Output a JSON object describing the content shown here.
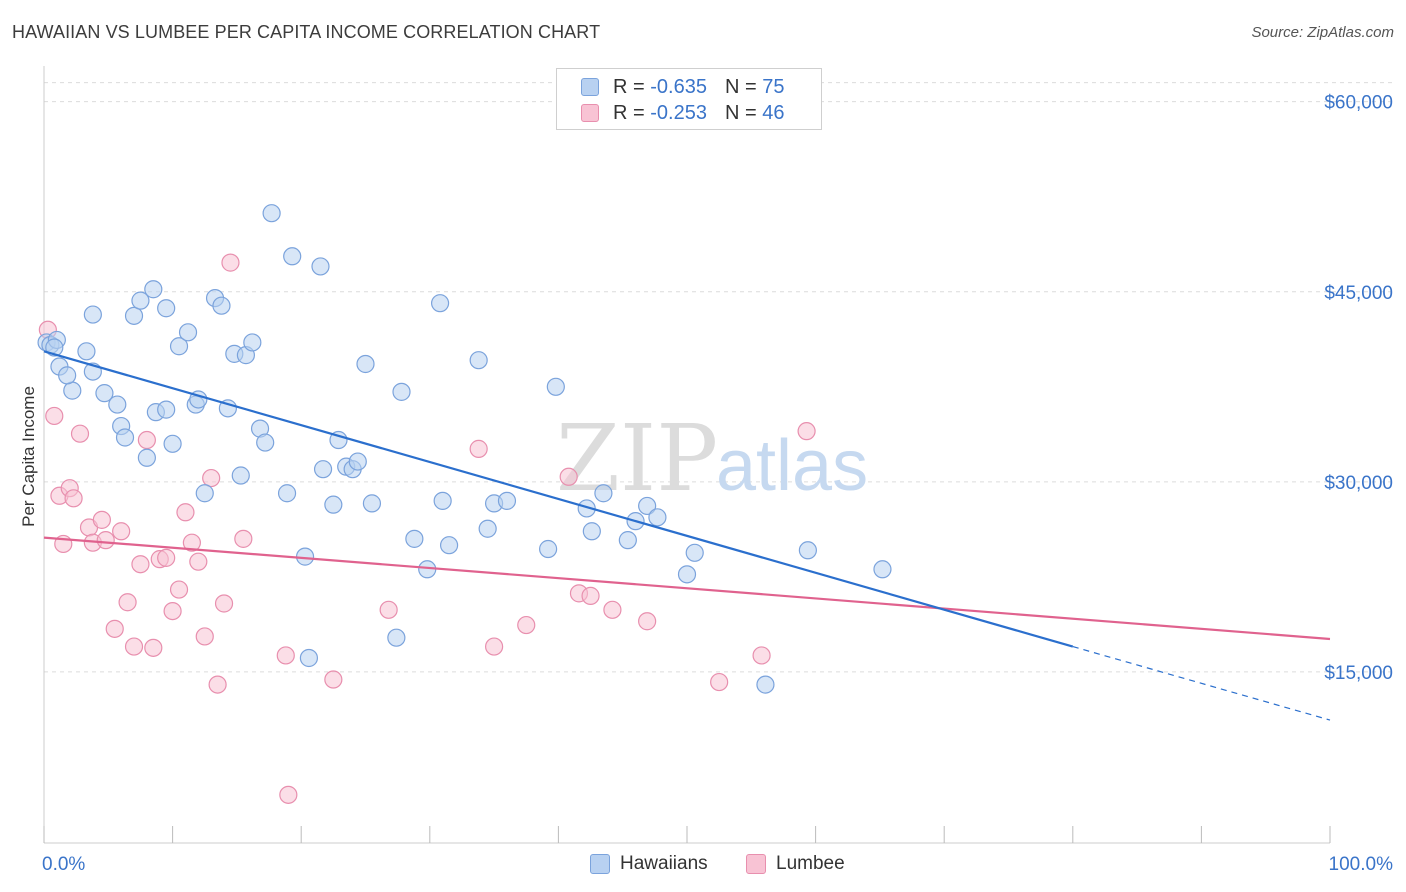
{
  "title": "HAWAIIAN VS LUMBEE PER CAPITA INCOME CORRELATION CHART",
  "source": "Source: ZipAtlas.com",
  "watermark": {
    "zip": "ZIP",
    "atlas": "atlas"
  },
  "legend_stats": [
    {
      "r_label": "R =",
      "r_value": "-0.635",
      "n_label": "N =",
      "n_value": "75"
    },
    {
      "r_label": "R =",
      "r_value": "-0.253",
      "n_label": "N =",
      "n_value": "46"
    }
  ],
  "colors": {
    "hawaiians_fill": "#b8d1f1",
    "hawaiians_stroke": "#7ba3dc",
    "hawaiians_line": "#2b6fcd",
    "lumbee_fill": "#f8c3d4",
    "lumbee_stroke": "#e88fae",
    "lumbee_line": "#e0628e",
    "axis_label": "#3a74c9",
    "grid": "#dcdcdc"
  },
  "chart_data": {
    "type": "scatter",
    "xlabel": "",
    "ylabel": "Per Capita Income",
    "xlim": [
      0,
      100
    ],
    "ylim": [
      1500,
      62500
    ],
    "x_tick_labels": [
      {
        "value": 0,
        "label": "0.0%"
      },
      {
        "value": 100,
        "label": "100.0%"
      }
    ],
    "y_ticks": [
      {
        "value": 15000,
        "label": "$15,000"
      },
      {
        "value": 30000,
        "label": "$30,000"
      },
      {
        "value": 45000,
        "label": "$45,000"
      },
      {
        "value": 60000,
        "label": "$60,000"
      }
    ],
    "grid": "horizontal-dashed",
    "legend_position": "bottom-center",
    "series": [
      {
        "name": "Hawaiians",
        "trend": {
          "x0": 0,
          "y0": 40300,
          "x1": 80,
          "y1": 17000,
          "dash_to_x": 100,
          "dash_to_y": 11200
        },
        "points": [
          [
            0.2,
            41000
          ],
          [
            1.2,
            39100
          ],
          [
            2.2,
            37200
          ],
          [
            1.8,
            38400
          ],
          [
            3.8,
            43200
          ],
          [
            3.3,
            40300
          ],
          [
            3.8,
            38700
          ],
          [
            4.7,
            37000
          ],
          [
            6.0,
            34400
          ],
          [
            5.7,
            36100
          ],
          [
            6.3,
            33500
          ],
          [
            7.0,
            43100
          ],
          [
            7.5,
            44300
          ],
          [
            8.0,
            31900
          ],
          [
            8.7,
            35500
          ],
          [
            8.5,
            45200
          ],
          [
            9.5,
            43700
          ],
          [
            9.5,
            35700
          ],
          [
            10.0,
            33000
          ],
          [
            10.5,
            40700
          ],
          [
            11.2,
            41800
          ],
          [
            11.8,
            36100
          ],
          [
            12.0,
            36500
          ],
          [
            12.5,
            29100
          ],
          [
            13.3,
            44500
          ],
          [
            13.8,
            43900
          ],
          [
            14.3,
            35800
          ],
          [
            14.8,
            40100
          ],
          [
            15.3,
            30500
          ],
          [
            15.7,
            40000
          ],
          [
            16.2,
            41000
          ],
          [
            16.8,
            34200
          ],
          [
            17.2,
            33100
          ],
          [
            17.7,
            51200
          ],
          [
            18.9,
            29100
          ],
          [
            19.3,
            47800
          ],
          [
            20.3,
            24100
          ],
          [
            20.6,
            16100
          ],
          [
            21.5,
            47000
          ],
          [
            21.7,
            31000
          ],
          [
            22.5,
            28200
          ],
          [
            22.9,
            33300
          ],
          [
            23.5,
            31200
          ],
          [
            24.0,
            31000
          ],
          [
            24.4,
            31600
          ],
          [
            25.0,
            39300
          ],
          [
            25.5,
            28300
          ],
          [
            27.4,
            17700
          ],
          [
            27.8,
            37100
          ],
          [
            28.8,
            25500
          ],
          [
            29.8,
            23100
          ],
          [
            30.8,
            44100
          ],
          [
            31.0,
            28500
          ],
          [
            31.5,
            25000
          ],
          [
            33.8,
            39600
          ],
          [
            34.5,
            26300
          ],
          [
            35.0,
            28300
          ],
          [
            36.0,
            28500
          ],
          [
            39.2,
            24700
          ],
          [
            39.8,
            37500
          ],
          [
            42.2,
            27900
          ],
          [
            42.6,
            26100
          ],
          [
            43.5,
            29100
          ],
          [
            45.4,
            25400
          ],
          [
            46.0,
            26900
          ],
          [
            46.9,
            28100
          ],
          [
            47.7,
            27200
          ],
          [
            50.0,
            22700
          ],
          [
            50.6,
            24400
          ],
          [
            56.1,
            14000
          ],
          [
            59.4,
            24600
          ],
          [
            65.2,
            23100
          ],
          [
            0.5,
            40800
          ],
          [
            1.0,
            41200
          ],
          [
            0.8,
            40600
          ]
        ]
      },
      {
        "name": "Lumbee",
        "trend": {
          "x0": 0,
          "y0": 25600,
          "x1": 100,
          "y1": 17600
        },
        "points": [
          [
            0.3,
            42000
          ],
          [
            0.8,
            35200
          ],
          [
            1.2,
            28900
          ],
          [
            1.5,
            25100
          ],
          [
            2.0,
            29500
          ],
          [
            2.3,
            28700
          ],
          [
            2.8,
            33800
          ],
          [
            3.5,
            26400
          ],
          [
            3.8,
            25200
          ],
          [
            4.5,
            27000
          ],
          [
            4.8,
            25400
          ],
          [
            5.5,
            18400
          ],
          [
            6.0,
            26100
          ],
          [
            6.5,
            20500
          ],
          [
            7.0,
            17000
          ],
          [
            7.5,
            23500
          ],
          [
            8.0,
            33300
          ],
          [
            8.5,
            16900
          ],
          [
            9.0,
            23900
          ],
          [
            9.5,
            24000
          ],
          [
            10.0,
            19800
          ],
          [
            10.5,
            21500
          ],
          [
            11.0,
            27600
          ],
          [
            11.5,
            25200
          ],
          [
            12.0,
            23700
          ],
          [
            12.5,
            17800
          ],
          [
            13.0,
            30300
          ],
          [
            13.5,
            14000
          ],
          [
            14.0,
            20400
          ],
          [
            14.5,
            47300
          ],
          [
            15.5,
            25500
          ],
          [
            18.8,
            16300
          ],
          [
            19.0,
            5300
          ],
          [
            22.5,
            14400
          ],
          [
            26.8,
            19900
          ],
          [
            33.8,
            32600
          ],
          [
            35.0,
            17000
          ],
          [
            37.5,
            18700
          ],
          [
            40.8,
            30400
          ],
          [
            41.6,
            21200
          ],
          [
            42.5,
            21000
          ],
          [
            44.2,
            19900
          ],
          [
            46.9,
            19000
          ],
          [
            52.5,
            14200
          ],
          [
            55.8,
            16300
          ],
          [
            59.3,
            34000
          ]
        ]
      }
    ]
  }
}
